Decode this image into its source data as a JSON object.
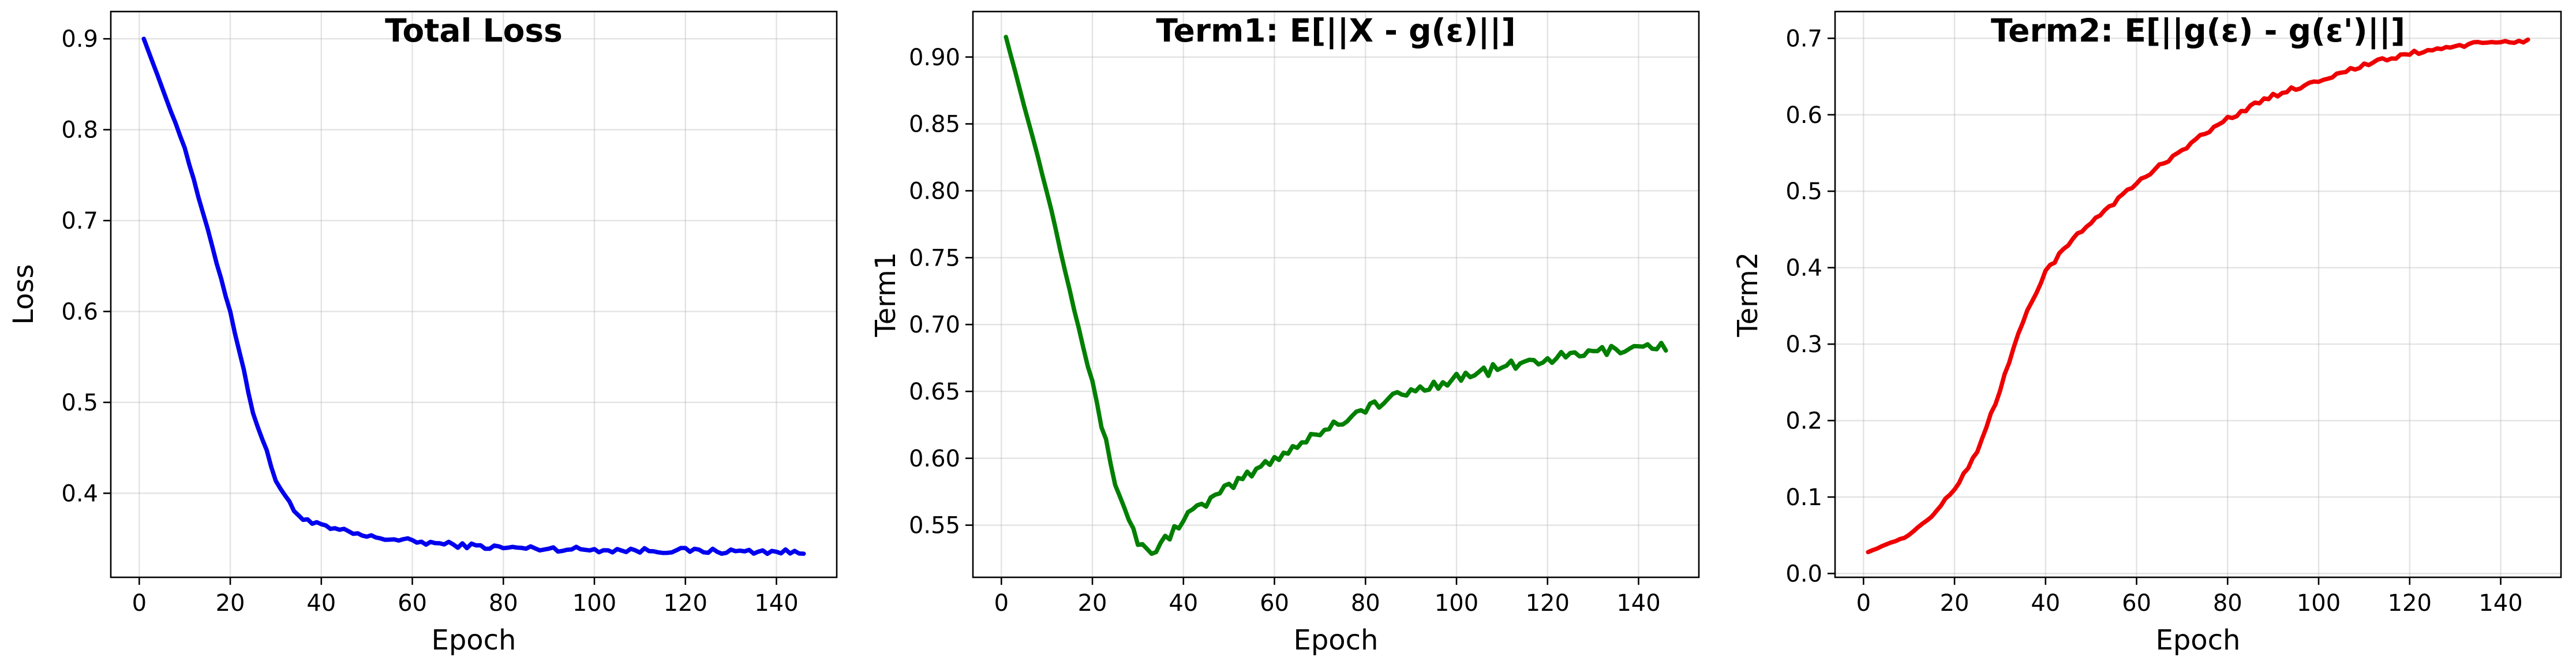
{
  "chart_data": [
    {
      "type": "line",
      "title": "Total Loss",
      "xlabel": "Epoch",
      "ylabel": "Loss",
      "xlim": [
        -6.25,
        153.25
      ],
      "ylim": [
        0.3075,
        0.93
      ],
      "xticks": [
        0,
        20,
        40,
        60,
        80,
        100,
        120,
        140
      ],
      "yticks": [
        0.4,
        0.5,
        0.6,
        0.7,
        0.8,
        0.9
      ],
      "ytick_labels": [
        "0.4",
        "0.5",
        "0.6",
        "0.7",
        "0.8",
        "0.9"
      ],
      "grid": true,
      "color": "#0000ee",
      "series": [
        {
          "x": [
            1,
            10,
            20,
            25,
            30,
            34,
            38,
            42,
            46,
            50,
            55,
            60,
            70,
            80,
            90,
            100,
            110,
            120,
            130,
            140,
            146
          ],
          "y": [
            0.9,
            0.78,
            0.6,
            0.49,
            0.415,
            0.38,
            0.367,
            0.361,
            0.357,
            0.352,
            0.35,
            0.347,
            0.343,
            0.34,
            0.339,
            0.338,
            0.337,
            0.337,
            0.336,
            0.336,
            0.334
          ],
          "noise": 0.003
        }
      ]
    },
    {
      "type": "line",
      "title": "Term1: E[||X - g(ε)||]",
      "xlabel": "Epoch",
      "ylabel": "Term1",
      "xlim": [
        -6.25,
        153.25
      ],
      "ylim": [
        0.511,
        0.934
      ],
      "xticks": [
        0,
        20,
        40,
        60,
        80,
        100,
        120,
        140
      ],
      "yticks": [
        0.55,
        0.6,
        0.65,
        0.7,
        0.75,
        0.8,
        0.85,
        0.9
      ],
      "ytick_labels": [
        "0.55",
        "0.60",
        "0.65",
        "0.70",
        "0.75",
        "0.80",
        "0.85",
        "0.90"
      ],
      "grid": true,
      "color": "#007f00",
      "series": [
        {
          "x": [
            1,
            10,
            20,
            25,
            30,
            33,
            35,
            40,
            50,
            60,
            70,
            80,
            90,
            100,
            110,
            120,
            130,
            140,
            146
          ],
          "y": [
            0.915,
            0.8,
            0.655,
            0.582,
            0.537,
            0.53,
            0.535,
            0.555,
            0.578,
            0.6,
            0.62,
            0.637,
            0.65,
            0.66,
            0.668,
            0.674,
            0.679,
            0.684,
            0.684
          ],
          "noise": 0.004
        }
      ]
    },
    {
      "type": "line",
      "title": "Term2: E[||g(ε) - g(ε')||]",
      "xlabel": "Epoch",
      "ylabel": "Term2",
      "xlim": [
        -6.25,
        153.25
      ],
      "ylim": [
        -0.005,
        0.735
      ],
      "xticks": [
        0,
        20,
        40,
        60,
        80,
        100,
        120,
        140
      ],
      "yticks": [
        0.0,
        0.1,
        0.2,
        0.3,
        0.4,
        0.5,
        0.6,
        0.7
      ],
      "ytick_labels": [
        "0.0",
        "0.1",
        "0.2",
        "0.3",
        "0.4",
        "0.5",
        "0.6",
        "0.7"
      ],
      "grid": true,
      "color": "#ee0000",
      "series": [
        {
          "x": [
            1,
            10,
            15,
            20,
            25,
            30,
            35,
            40,
            45,
            50,
            55,
            60,
            70,
            80,
            90,
            100,
            110,
            120,
            130,
            140,
            146
          ],
          "y": [
            0.028,
            0.05,
            0.075,
            0.11,
            0.16,
            0.24,
            0.33,
            0.395,
            0.43,
            0.46,
            0.485,
            0.51,
            0.555,
            0.595,
            0.625,
            0.645,
            0.665,
            0.68,
            0.69,
            0.695,
            0.697
          ],
          "noise": 0.003
        }
      ]
    }
  ]
}
